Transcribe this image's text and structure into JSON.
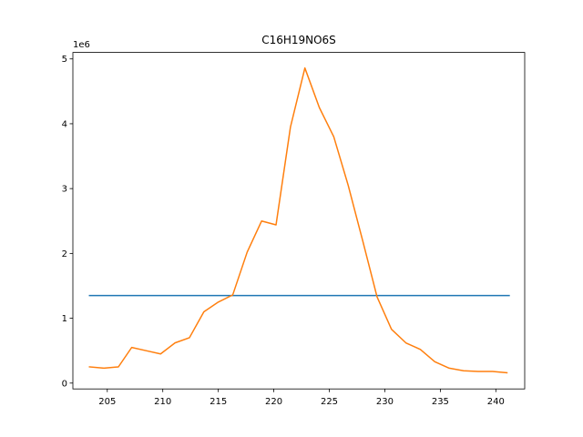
{
  "chart_data": {
    "type": "line",
    "title": "C16H19NO6S",
    "xlabel": "",
    "ylabel": "",
    "y_offset_label": "1e6",
    "xlim": [
      201.9,
      242.6
    ],
    "ylim": [
      -0.09,
      5.1
    ],
    "x_ticks": [
      205,
      210,
      215,
      220,
      225,
      230,
      235,
      240
    ],
    "y_ticks": [
      0,
      1,
      2,
      3,
      4,
      5
    ],
    "grid": false,
    "legend": "none",
    "series": [
      {
        "color": "#1f77b4",
        "x": [
          203.4,
          241.2
        ],
        "y": [
          1.35,
          1.35
        ]
      },
      {
        "color": "#ff7f0e",
        "x": [
          203.4,
          204.7,
          206.0,
          207.2,
          208.5,
          209.8,
          211.1,
          212.4,
          213.7,
          215.0,
          216.3,
          217.6,
          218.9,
          220.2,
          221.5,
          222.8,
          224.1,
          225.4,
          226.7,
          228.0,
          229.3,
          230.6,
          231.9,
          233.2,
          234.5,
          235.8,
          237.1,
          238.4,
          239.7,
          241.0
        ],
        "y": [
          0.25,
          0.23,
          0.25,
          0.55,
          0.5,
          0.45,
          0.62,
          0.7,
          1.1,
          1.25,
          1.36,
          2.02,
          2.5,
          2.44,
          3.95,
          4.86,
          4.25,
          3.8,
          3.05,
          2.2,
          1.33,
          0.83,
          0.62,
          0.52,
          0.33,
          0.23,
          0.19,
          0.18,
          0.18,
          0.16
        ]
      }
    ]
  }
}
